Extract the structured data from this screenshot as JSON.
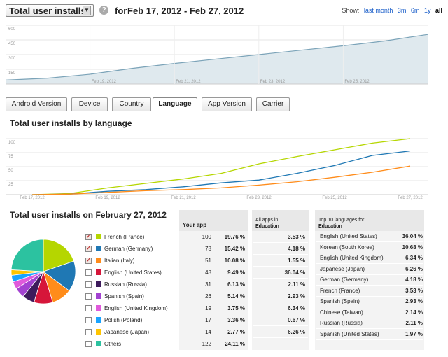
{
  "header": {
    "metric": "Total user installs",
    "for_label": "for",
    "date_range": "Feb 17, 2012 - Feb 27, 2012",
    "help_icon": "?",
    "show_label": "Show:",
    "ranges": [
      "last month",
      "3m",
      "6m",
      "1y",
      "all"
    ],
    "active_range": "all"
  },
  "top_chart": {
    "y_ticks": [
      "600",
      "450",
      "300",
      "150"
    ],
    "x_ticks": [
      "Feb 19, 2012",
      "Feb 21, 2012",
      "Feb 23, 2012",
      "Feb 25, 2012"
    ]
  },
  "tabs": [
    {
      "label": "Android Version"
    },
    {
      "label": "Device"
    },
    {
      "label": "Country"
    },
    {
      "label": "Language",
      "active": true
    },
    {
      "label": "App Version"
    },
    {
      "label": "Carrier"
    }
  ],
  "lang_section": {
    "title": "Total user installs by language",
    "y_ticks": [
      "100",
      "75",
      "50",
      "25"
    ],
    "x_ticks": [
      "Feb 17, 2012",
      "Feb 19, 2012",
      "Feb 21, 2012",
      "Feb 23, 2012",
      "Feb 25, 2012",
      "Feb 27, 2012"
    ]
  },
  "breakdown": {
    "title": "Total user installs on February 27, 2012",
    "your_app_header": "Your app",
    "edu_header_line1": "All apps in",
    "edu_header_line2": "Education",
    "top10_header_line1": "Top 10 languages for",
    "top10_header_line2": "Education"
  },
  "languages": [
    {
      "name": "French (France)",
      "count": "100",
      "pct": "19.76 %",
      "edu": "3.53 %",
      "color": "#b5d600",
      "checked": true
    },
    {
      "name": "German (Germany)",
      "count": "78",
      "pct": "15.42 %",
      "edu": "4.18 %",
      "color": "#1f78b4",
      "checked": true
    },
    {
      "name": "Italian (Italy)",
      "count": "51",
      "pct": "10.08 %",
      "edu": "1.55 %",
      "color": "#ff8c1a",
      "checked": true
    },
    {
      "name": "English (United States)",
      "count": "48",
      "pct": "9.49 %",
      "edu": "36.04 %",
      "color": "#d6163a",
      "checked": false
    },
    {
      "name": "Russian (Russia)",
      "count": "31",
      "pct": "6.13 %",
      "edu": "2.11 %",
      "color": "#3d1b5c",
      "checked": false
    },
    {
      "name": "Spanish (Spain)",
      "count": "26",
      "pct": "5.14 %",
      "edu": "2.93 %",
      "color": "#a342d1",
      "checked": false
    },
    {
      "name": "English (United Kingdom)",
      "count": "19",
      "pct": "3.75 %",
      "edu": "6.34 %",
      "color": "#e05adb",
      "checked": false
    },
    {
      "name": "Polish (Poland)",
      "count": "17",
      "pct": "3.36 %",
      "edu": "0.67 %",
      "color": "#1aa3ff",
      "checked": false
    },
    {
      "name": "Japanese (Japan)",
      "count": "14",
      "pct": "2.77 %",
      "edu": "6.26 %",
      "color": "#ffc400",
      "checked": false
    },
    {
      "name": "Others",
      "count": "122",
      "pct": "24.11 %",
      "edu": "",
      "color": "#2cc2a0",
      "checked": false
    }
  ],
  "top10": [
    {
      "name": "English (United States)",
      "pct": "36.04 %"
    },
    {
      "name": "Korean (South Korea)",
      "pct": "10.68 %"
    },
    {
      "name": "English (United Kingdom)",
      "pct": "6.34 %"
    },
    {
      "name": "Japanese (Japan)",
      "pct": "6.26 %"
    },
    {
      "name": "German (Germany)",
      "pct": "4.18 %"
    },
    {
      "name": "French (France)",
      "pct": "3.53 %"
    },
    {
      "name": "Spanish (Spain)",
      "pct": "2.93 %"
    },
    {
      "name": "Chinese (Taiwan)",
      "pct": "2.14 %"
    },
    {
      "name": "Russian (Russia)",
      "pct": "2.11 %"
    },
    {
      "name": "Spanish (United States)",
      "pct": "1.97 %"
    }
  ],
  "chart_data": [
    {
      "type": "area",
      "x": [
        "Feb 17",
        "Feb 18",
        "Feb 19",
        "Feb 20",
        "Feb 21",
        "Feb 22",
        "Feb 23",
        "Feb 24",
        "Feb 25",
        "Feb 26",
        "Feb 27"
      ],
      "series": [
        {
          "values": [
            40,
            60,
            100,
            160,
            210,
            255,
            300,
            345,
            390,
            440,
            506
          ]
        }
      ],
      "ylim": [
        0,
        600
      ],
      "grid": true
    },
    {
      "type": "line",
      "title": "Total user installs by language",
      "x": [
        "Feb 17",
        "Feb 18",
        "Feb 19",
        "Feb 20",
        "Feb 21",
        "Feb 22",
        "Feb 23",
        "Feb 24",
        "Feb 25",
        "Feb 26",
        "Feb 27"
      ],
      "series": [
        {
          "color": "#b5d600",
          "values": [
            0,
            2,
            12,
            20,
            28,
            38,
            55,
            68,
            80,
            92,
            100
          ]
        },
        {
          "color": "#1f78b4",
          "values": [
            0,
            1,
            6,
            9,
            14,
            21,
            26,
            38,
            52,
            70,
            78
          ]
        },
        {
          "color": "#ff8c1a",
          "values": [
            0,
            1,
            4,
            7,
            9,
            12,
            17,
            23,
            31,
            40,
            51
          ]
        }
      ],
      "ylim": [
        0,
        100
      ],
      "grid": true
    },
    {
      "type": "pie",
      "categories": [
        "French (France)",
        "German (Germany)",
        "Italian (Italy)",
        "English (United States)",
        "Russian (Russia)",
        "Spanish (Spain)",
        "English (United Kingdom)",
        "Polish (Poland)",
        "Japanese (Japan)",
        "Others"
      ],
      "values": [
        100,
        78,
        51,
        48,
        31,
        26,
        19,
        17,
        14,
        122
      ]
    }
  ]
}
